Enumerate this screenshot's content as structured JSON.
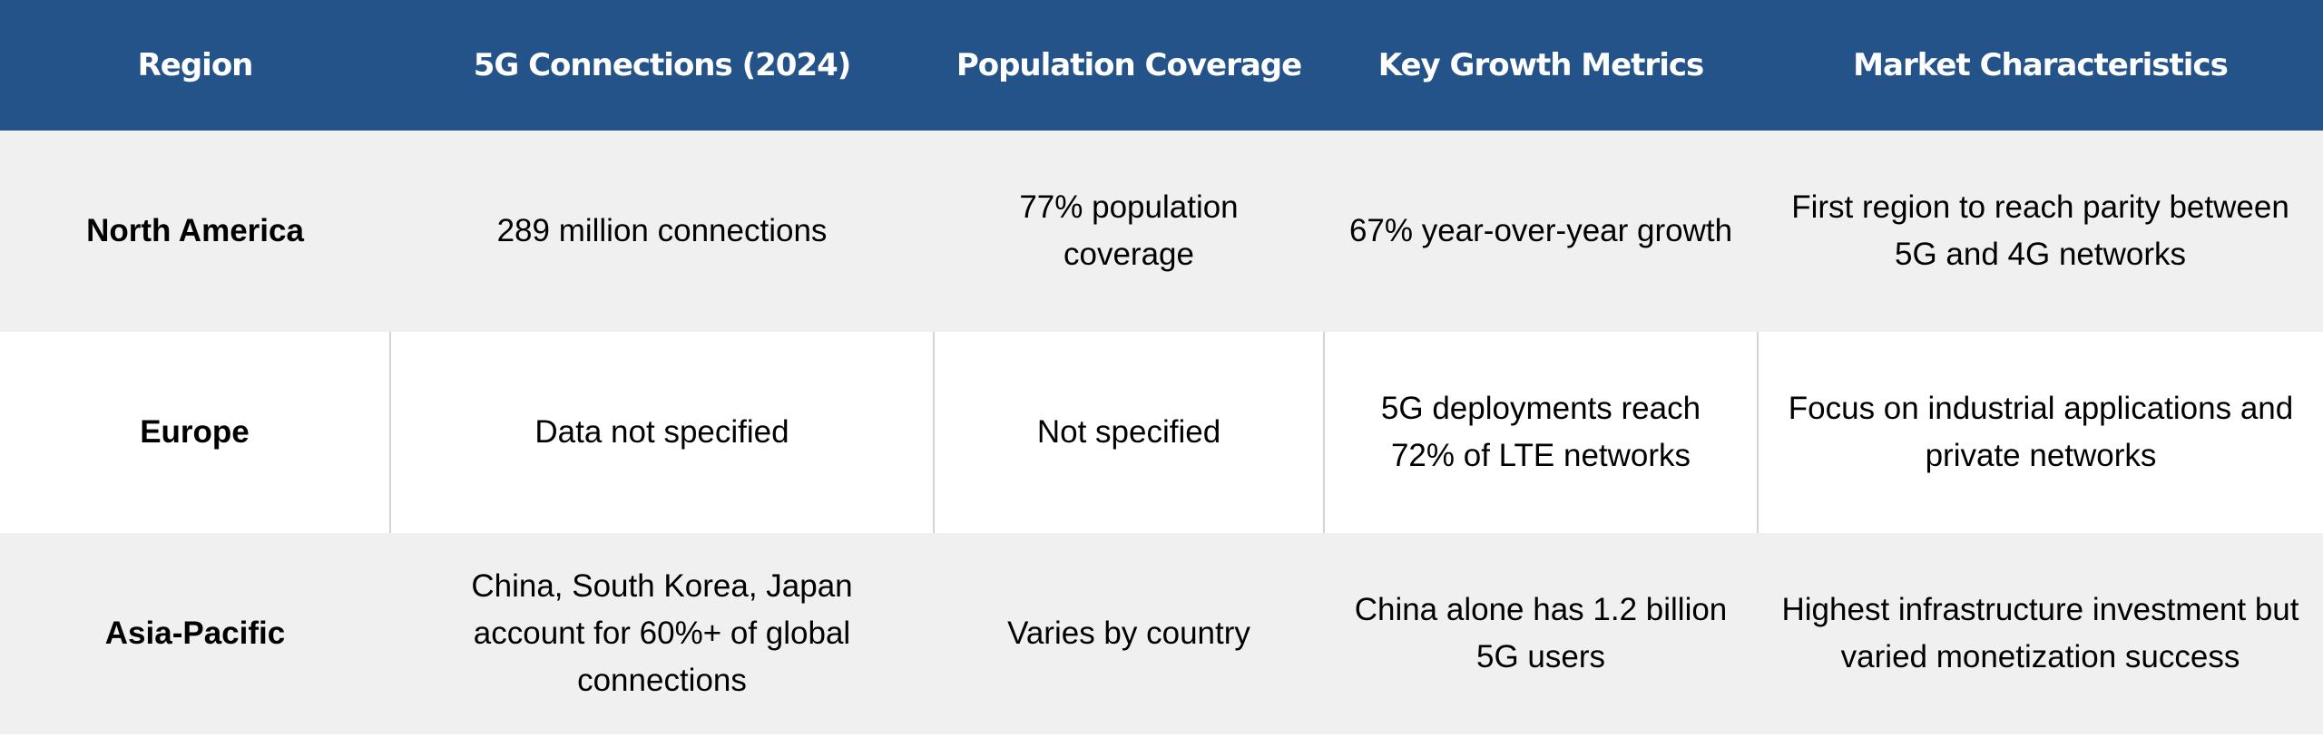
{
  "table": {
    "headers": [
      "Region",
      "5G Connections (2024)",
      "Population Coverage",
      "Key Growth Metrics",
      "Market Characteristics"
    ],
    "rows": [
      [
        "North America",
        "289 million connections",
        "77% population coverage",
        "67% year-over-year growth",
        "First region to reach parity between 5G and 4G networks"
      ],
      [
        "Europe",
        "Data not specified",
        "Not specified",
        "5G deployments reach 72% of LTE networks",
        "Focus on industrial applications and private networks"
      ],
      [
        "Asia-Pacific",
        "China, South Korea, Japan account for 60%+ of global connections",
        "Varies by country",
        "China alone has 1.2 billion 5G users",
        "Highest infrastructure investment but varied monetization success"
      ]
    ]
  },
  "colors": {
    "header_bg": "#24538a",
    "header_text": "#ffffff",
    "alt_row_bg": "#f0f0f0",
    "border": "#d4d4d4"
  }
}
